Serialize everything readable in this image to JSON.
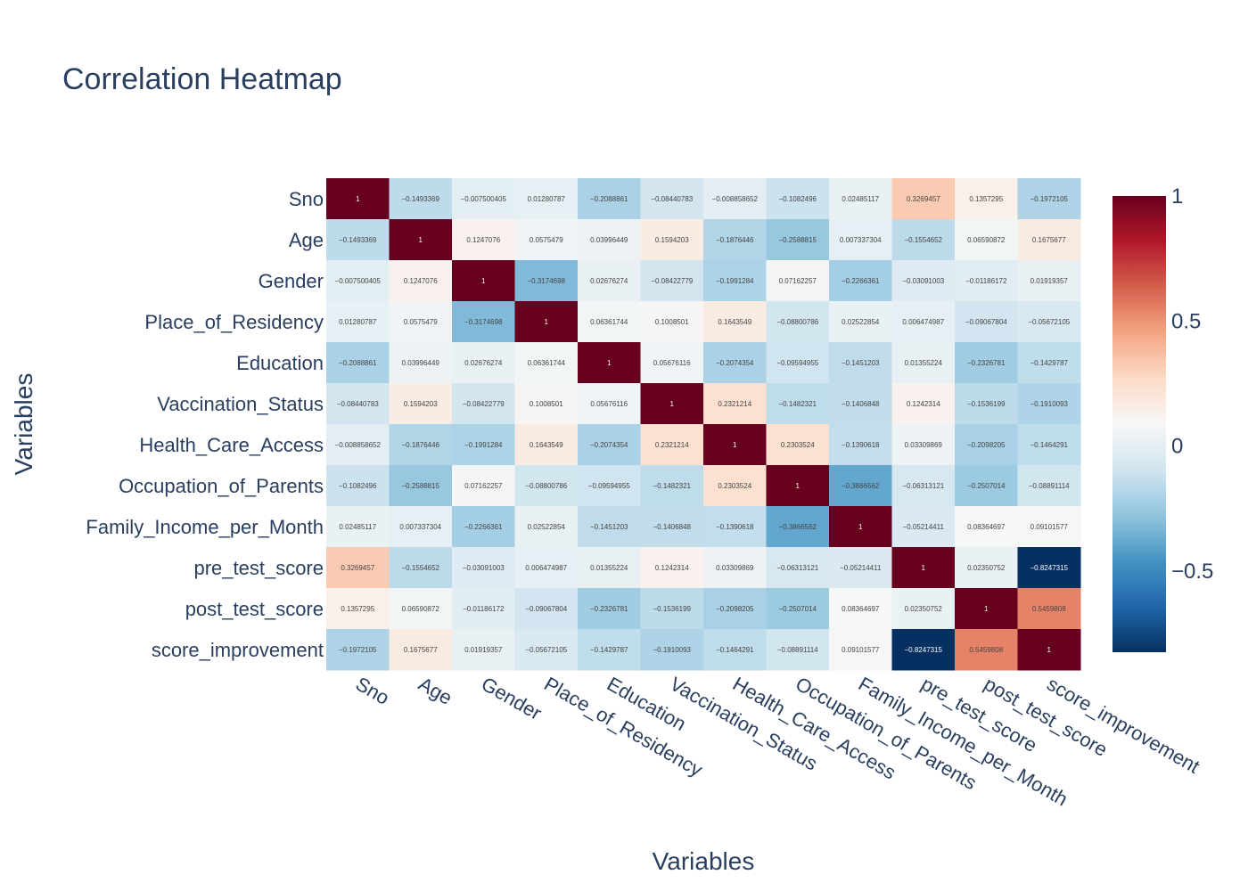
{
  "chart_data": {
    "type": "heatmap",
    "title": "Correlation Heatmap",
    "xlabel": "Variables",
    "ylabel": "Variables",
    "variables": [
      "Sno",
      "Age",
      "Gender",
      "Place_of_Residency",
      "Education",
      "Vaccination_Status",
      "Health_Care_Access",
      "Occupation_of_Parents",
      "Family_Income_per_Month",
      "pre_test_score",
      "post_test_score",
      "score_improvement"
    ],
    "values": [
      [
        1,
        -0.1493369,
        -0.007500405,
        0.01280787,
        -0.2088861,
        -0.08440783,
        -0.008858652,
        -0.1082496,
        0.02485117,
        0.3269457,
        0.1357295,
        -0.1972105
      ],
      [
        -0.1493369,
        1,
        0.1247076,
        0.0575479,
        0.03996449,
        0.1594203,
        -0.1876446,
        -0.2588815,
        0.007337304,
        -0.1554652,
        0.06590872,
        0.1675677
      ],
      [
        -0.007500405,
        0.1247076,
        1,
        -0.3174698,
        0.02676274,
        -0.08422779,
        -0.1991284,
        0.07162257,
        -0.2266361,
        -0.03091003,
        -0.01186172,
        0.01919357
      ],
      [
        0.01280787,
        0.0575479,
        -0.3174698,
        1,
        0.06361744,
        0.1008501,
        0.1643549,
        -0.08800786,
        0.02522854,
        0.006474987,
        -0.09067804,
        -0.05672105
      ],
      [
        -0.2088861,
        0.03996449,
        0.02676274,
        0.06361744,
        1,
        0.05676116,
        -0.2074354,
        -0.09594955,
        -0.1451203,
        0.01355224,
        -0.2326781,
        -0.1429787
      ],
      [
        -0.08440783,
        0.1594203,
        -0.08422779,
        0.1008501,
        0.05676116,
        1,
        0.2321214,
        -0.1482321,
        -0.1406848,
        0.1242314,
        -0.1536199,
        -0.1910093
      ],
      [
        -0.008858652,
        -0.1876446,
        -0.1991284,
        0.1643549,
        -0.2074354,
        0.2321214,
        1,
        0.2303524,
        -0.1390618,
        0.03309869,
        -0.2098205,
        -0.1464291
      ],
      [
        -0.1082496,
        -0.2588815,
        0.07162257,
        -0.08800786,
        -0.09594955,
        -0.1482321,
        0.2303524,
        1,
        -0.3866562,
        -0.06313121,
        -0.2507014,
        -0.08891114
      ],
      [
        0.02485117,
        0.007337304,
        -0.2266361,
        0.02522854,
        -0.1451203,
        -0.1406848,
        -0.1390618,
        -0.3866562,
        1,
        -0.05214411,
        0.08364697,
        0.09101577
      ],
      [
        0.3269457,
        -0.1554652,
        -0.03091003,
        0.006474987,
        0.01355224,
        0.1242314,
        0.03309869,
        -0.06313121,
        -0.05214411,
        1,
        0.02350752,
        -0.8247315
      ],
      [
        0.1357295,
        0.06590872,
        -0.01186172,
        -0.09067804,
        -0.2326781,
        -0.1536199,
        -0.2098205,
        -0.2507014,
        0.08364697,
        0.02350752,
        1,
        0.5459808
      ],
      [
        -0.1972105,
        0.1675677,
        0.01919357,
        -0.05672105,
        -0.1429787,
        -0.1910093,
        -0.1464291,
        -0.08891114,
        0.09101577,
        -0.8247315,
        0.5459808,
        1
      ]
    ],
    "zrange": [
      -0.8247315,
      1
    ],
    "colorscale": "RdBu",
    "colorscale_colors": [
      "#053061",
      "#2166ac",
      "#4393c3",
      "#92c5de",
      "#d1e5f0",
      "#f7f7f7",
      "#fddbc7",
      "#f4a582",
      "#d6604d",
      "#b2182b",
      "#67001f"
    ],
    "colorbar_ticks": [
      1,
      0.5,
      0,
      -0.5
    ],
    "colorbar_tick_labels": [
      "1",
      "0.5",
      "0",
      "−0.5"
    ]
  }
}
